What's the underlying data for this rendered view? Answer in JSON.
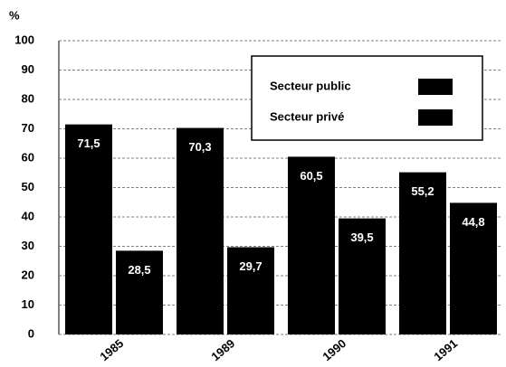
{
  "chart_data": {
    "type": "bar",
    "y_label": "%",
    "categories": [
      "1985",
      "1989",
      "1990",
      "1991"
    ],
    "series": [
      {
        "name": "Secteur public",
        "color": "#000000",
        "values": [
          71.5,
          70.3,
          60.5,
          55.2
        ],
        "value_labels": [
          "71,5",
          "70,3",
          "60,5",
          "55,2"
        ]
      },
      {
        "name": "Secteur privé",
        "color": "#000000",
        "values": [
          28.5,
          29.7,
          39.5,
          44.8
        ],
        "value_labels": [
          "28,5",
          "29,7",
          "39,5",
          "44,8"
        ]
      }
    ],
    "ylim": [
      0,
      100
    ],
    "yticks": [
      0,
      10,
      20,
      30,
      40,
      50,
      60,
      70,
      80,
      90,
      100
    ],
    "grid": true
  }
}
